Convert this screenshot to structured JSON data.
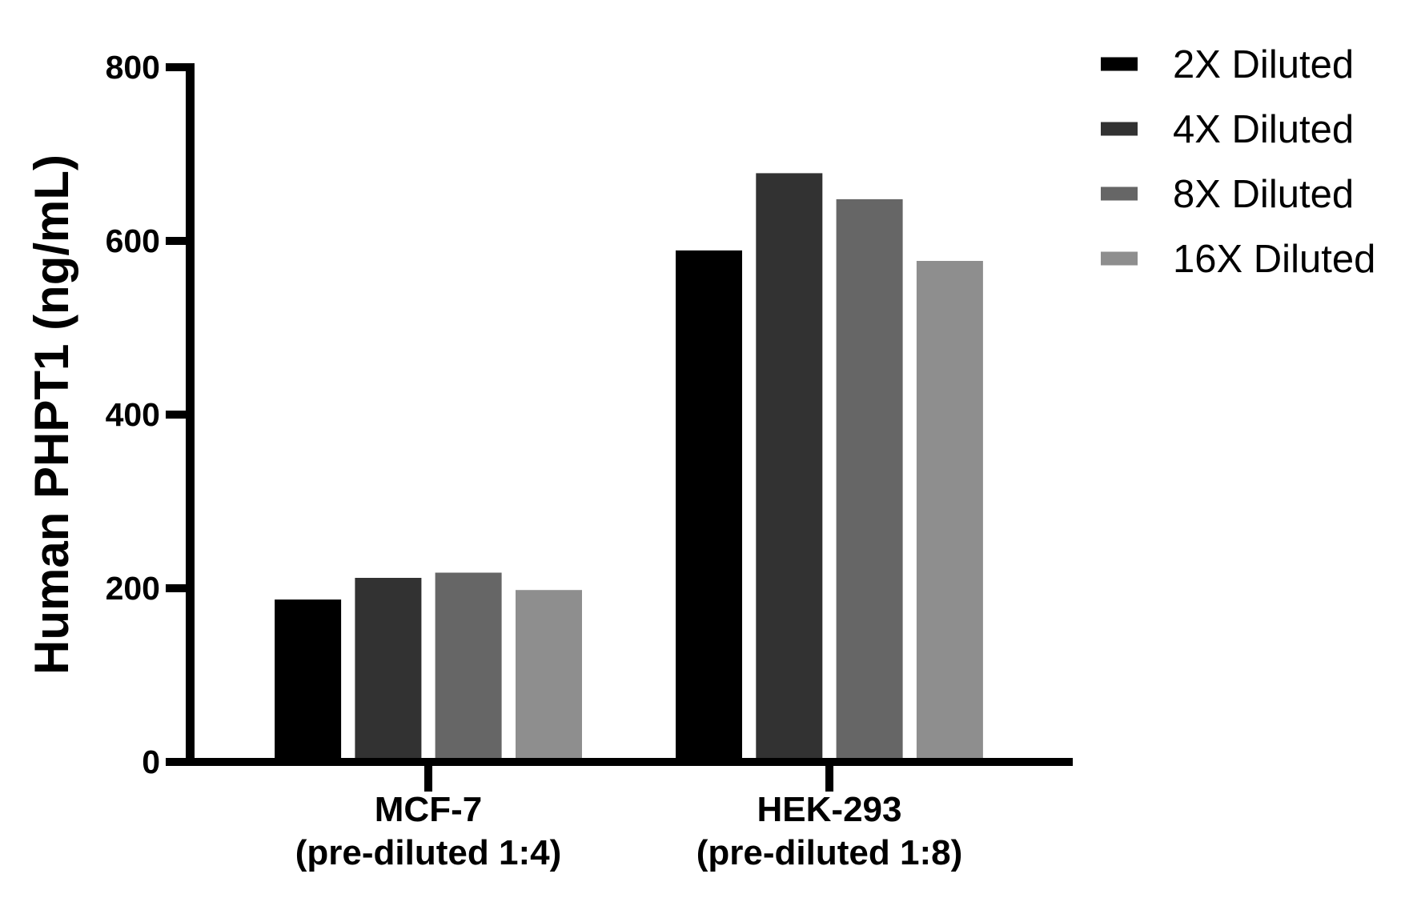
{
  "figure": {
    "background": "#FFFFFF",
    "axis_color": "#000000"
  },
  "chart_data": {
    "type": "bar",
    "title": "",
    "xlabel": "",
    "ylabel": "Human PHPT1 (ng/mL)",
    "ylim": [
      0,
      800
    ],
    "yticks": [
      0,
      200,
      400,
      600,
      800
    ],
    "grid": false,
    "legend_position": "top-right",
    "categories": [
      {
        "label": "MCF-7",
        "sublabel": "(pre-diluted 1:4)"
      },
      {
        "label": "HEK-293",
        "sublabel": "(pre-diluted 1:8)"
      }
    ],
    "series": [
      {
        "name": "2X Diluted",
        "color": "#000000",
        "values": [
          187,
          589
        ]
      },
      {
        "name": "4X Diluted",
        "color": "#323232",
        "values": [
          212,
          678
        ]
      },
      {
        "name": "8X Diluted",
        "color": "#666666",
        "values": [
          218,
          648
        ]
      },
      {
        "name": "16X Diluted",
        "color": "#8E8E8E",
        "values": [
          198,
          577
        ]
      }
    ]
  }
}
